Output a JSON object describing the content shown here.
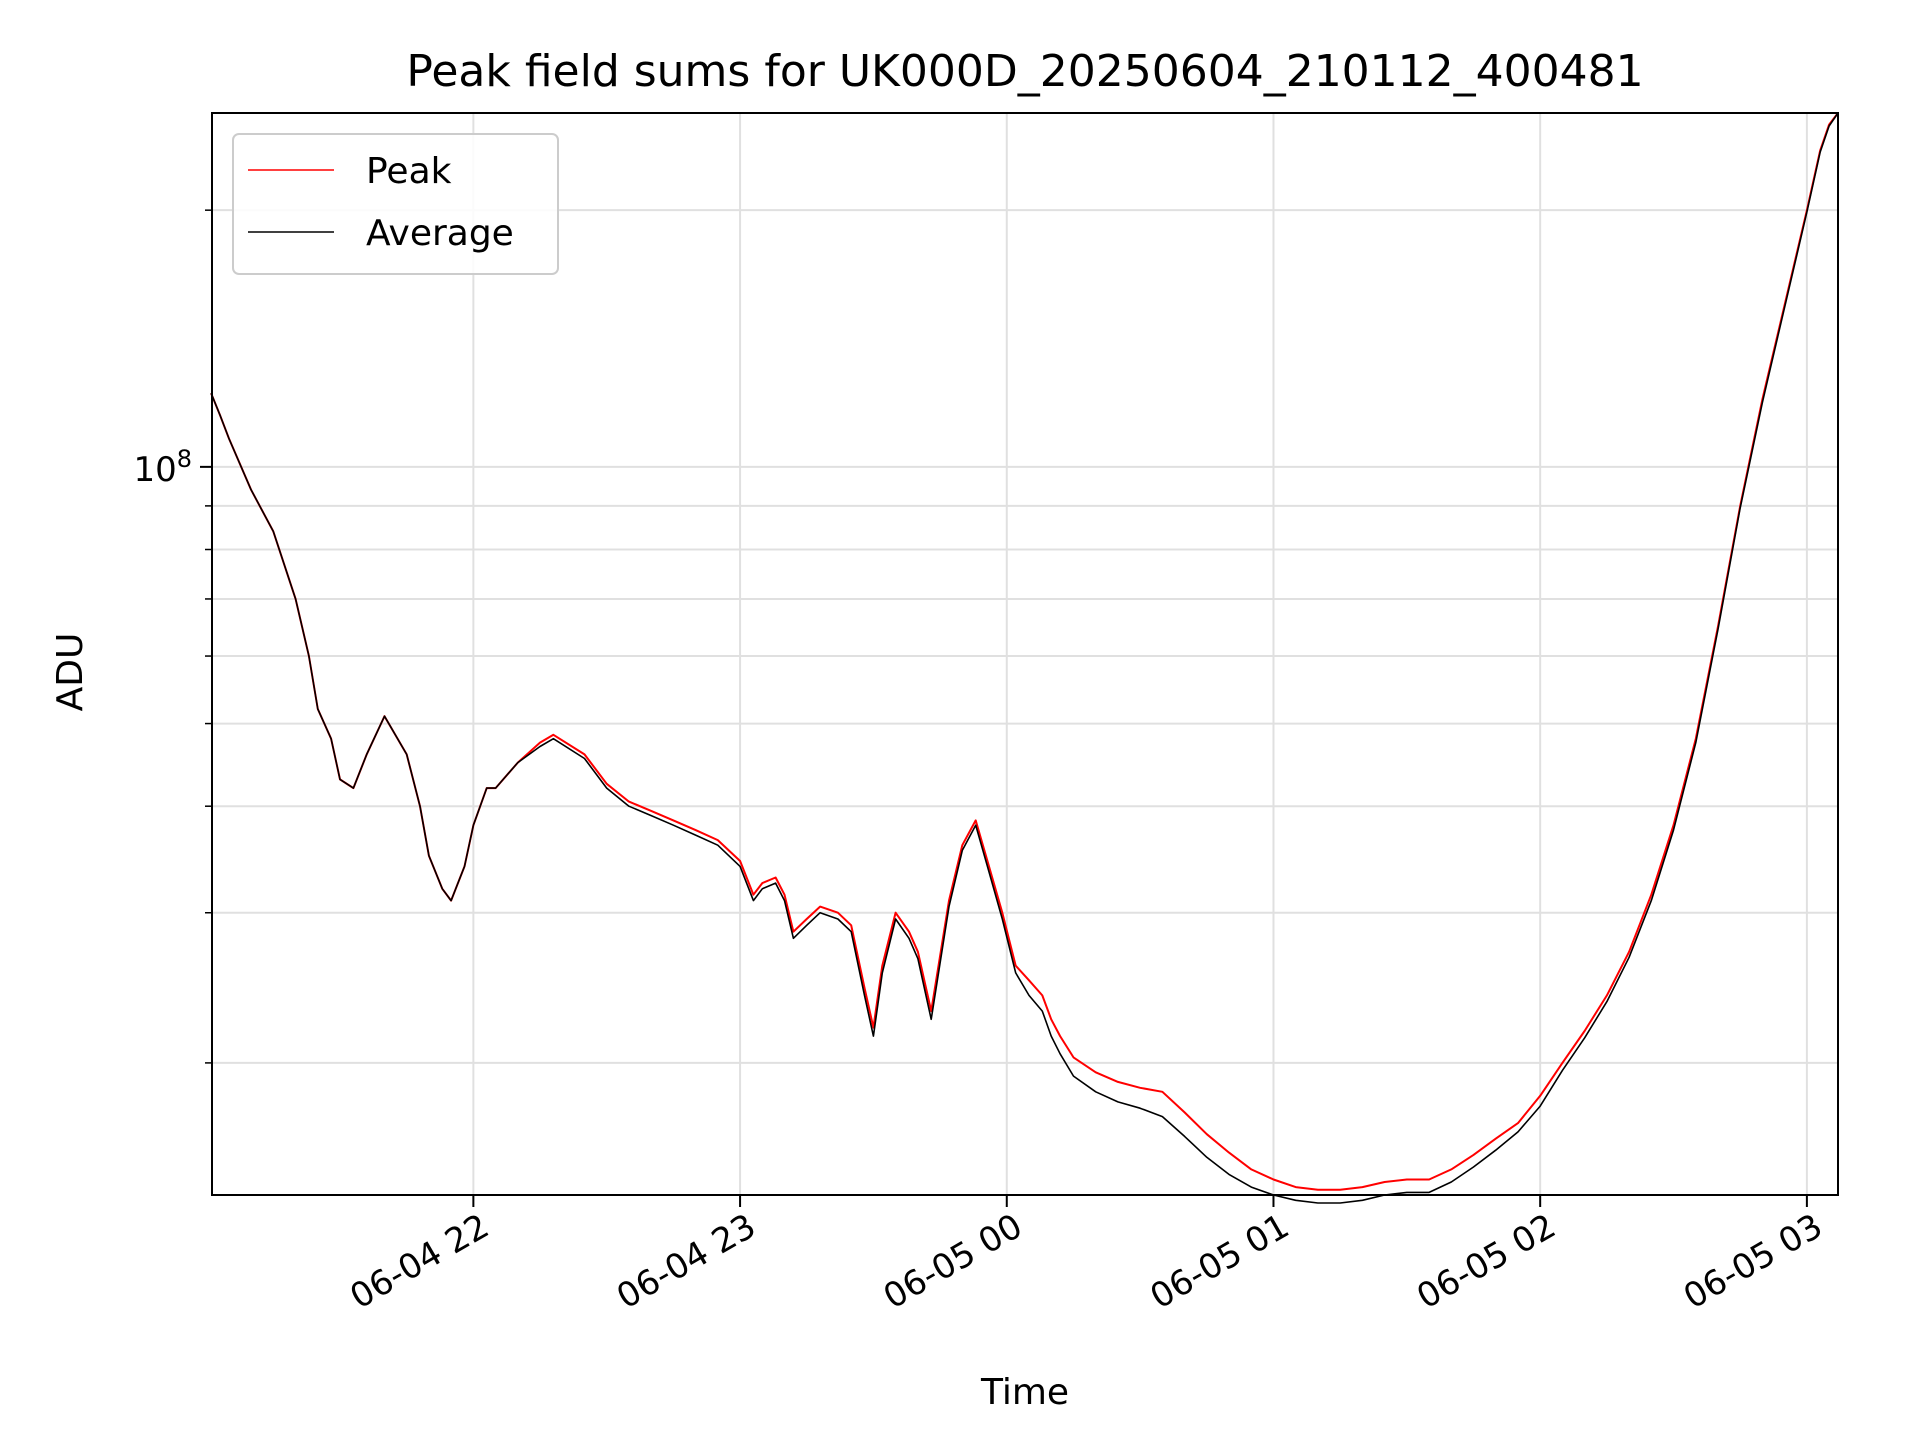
{
  "chart_data": {
    "type": "line",
    "title": "Peak field sums for UK000D_20250604_210112_400481",
    "xlabel": "Time",
    "ylabel": "ADU",
    "y_scale": "log",
    "ylim": [
      14000000,
      260000000
    ],
    "xlim": [
      "2025-06-04 21:01:12",
      "2025-06-05 03:07:00"
    ],
    "x_ticks": [
      {
        "value": "2025-06-04 22:00",
        "label": "06-04 22"
      },
      {
        "value": "2025-06-04 23:00",
        "label": "06-04 23"
      },
      {
        "value": "2025-06-05 00:00",
        "label": "06-05 00"
      },
      {
        "value": "2025-06-05 01:00",
        "label": "06-05 01"
      },
      {
        "value": "2025-06-05 02:00",
        "label": "06-05 02"
      },
      {
        "value": "2025-06-05 03:00",
        "label": "06-05 03"
      }
    ],
    "y_major_ticks": [
      {
        "value": 100000000,
        "label": "10^8"
      }
    ],
    "y_minor_ticks": [
      20000000,
      30000000,
      40000000,
      50000000,
      60000000,
      70000000,
      80000000,
      90000000,
      200000000
    ],
    "grid": true,
    "legend_position": "top-left",
    "series": [
      {
        "name": "Peak",
        "color": "#ff0000",
        "x": [
          "2025-06-04 21:01",
          "2025-06-04 21:03",
          "2025-06-04 21:05",
          "2025-06-04 21:10",
          "2025-06-04 21:15",
          "2025-06-04 21:20",
          "2025-06-04 21:23",
          "2025-06-04 21:25",
          "2025-06-04 21:28",
          "2025-06-04 21:30",
          "2025-06-04 21:33",
          "2025-06-04 21:36",
          "2025-06-04 21:40",
          "2025-06-04 21:45",
          "2025-06-04 21:48",
          "2025-06-04 21:50",
          "2025-06-04 21:53",
          "2025-06-04 21:55",
          "2025-06-04 21:58",
          "2025-06-04 22:00",
          "2025-06-04 22:03",
          "2025-06-04 22:05",
          "2025-06-04 22:10",
          "2025-06-04 22:15",
          "2025-06-04 22:18",
          "2025-06-04 22:25",
          "2025-06-04 22:30",
          "2025-06-04 22:35",
          "2025-06-04 22:40",
          "2025-06-04 22:45",
          "2025-06-04 22:50",
          "2025-06-04 22:55",
          "2025-06-04 23:00",
          "2025-06-04 23:03",
          "2025-06-04 23:05",
          "2025-06-04 23:08",
          "2025-06-04 23:10",
          "2025-06-04 23:12",
          "2025-06-04 23:15",
          "2025-06-04 23:18",
          "2025-06-04 23:22",
          "2025-06-04 23:25",
          "2025-06-04 23:28",
          "2025-06-04 23:30",
          "2025-06-04 23:32",
          "2025-06-04 23:35",
          "2025-06-04 23:38",
          "2025-06-04 23:40",
          "2025-06-04 23:43",
          "2025-06-04 23:47",
          "2025-06-04 23:50",
          "2025-06-04 23:53",
          "2025-06-04 23:56",
          "2025-06-04 23:59",
          "2025-06-05 00:02",
          "2025-06-05 00:05",
          "2025-06-05 00:08",
          "2025-06-05 00:10",
          "2025-06-05 00:12",
          "2025-06-05 00:15",
          "2025-06-05 00:20",
          "2025-06-05 00:25",
          "2025-06-05 00:30",
          "2025-06-05 00:35",
          "2025-06-05 00:40",
          "2025-06-05 00:45",
          "2025-06-05 00:50",
          "2025-06-05 00:55",
          "2025-06-05 01:00",
          "2025-06-05 01:05",
          "2025-06-05 01:10",
          "2025-06-05 01:15",
          "2025-06-05 01:20",
          "2025-06-05 01:25",
          "2025-06-05 01:30",
          "2025-06-05 01:35",
          "2025-06-05 01:40",
          "2025-06-05 01:45",
          "2025-06-05 01:50",
          "2025-06-05 01:55",
          "2025-06-05 02:00",
          "2025-06-05 02:05",
          "2025-06-05 02:10",
          "2025-06-05 02:15",
          "2025-06-05 02:20",
          "2025-06-05 02:25",
          "2025-06-05 02:30",
          "2025-06-05 02:35",
          "2025-06-05 02:40",
          "2025-06-05 02:45",
          "2025-06-05 02:50",
          "2025-06-05 02:55",
          "2025-06-05 03:00",
          "2025-06-05 03:03",
          "2025-06-05 03:05",
          "2025-06-05 03:07"
        ],
        "values": [
          122000000,
          115000000,
          108000000,
          94000000,
          84000000,
          70000000,
          60000000,
          52000000,
          48000000,
          43000000,
          42000000,
          46000000,
          51000000,
          46000000,
          40000000,
          35000000,
          32000000,
          31000000,
          34000000,
          38000000,
          42000000,
          42000000,
          45000000,
          47500000,
          48500000,
          46000000,
          42500000,
          40500000,
          39500000,
          38500000,
          37500000,
          36500000,
          34500000,
          31500000,
          32500000,
          33000000,
          31500000,
          28500000,
          29500000,
          30500000,
          30000000,
          29000000,
          24500000,
          22000000,
          26000000,
          30000000,
          28500000,
          27000000,
          23000000,
          31000000,
          36000000,
          38500000,
          34000000,
          30000000,
          26000000,
          25000000,
          24000000,
          22500000,
          21500000,
          20300000,
          19500000,
          19000000,
          18700000,
          18500000,
          17500000,
          16500000,
          15700000,
          15000000,
          14600000,
          14300000,
          14200000,
          14200000,
          14300000,
          14500000,
          14600000,
          14600000,
          15000000,
          15600000,
          16300000,
          17000000,
          18300000,
          20000000,
          21800000,
          24000000,
          27000000,
          31500000,
          38000000,
          48000000,
          65000000,
          90000000,
          120000000,
          155000000,
          200000000,
          235000000,
          252000000,
          260000000
        ]
      },
      {
        "name": "Average",
        "color": "#000000",
        "x": [
          "2025-06-04 21:01",
          "2025-06-04 21:03",
          "2025-06-04 21:05",
          "2025-06-04 21:10",
          "2025-06-04 21:15",
          "2025-06-04 21:20",
          "2025-06-04 21:23",
          "2025-06-04 21:25",
          "2025-06-04 21:28",
          "2025-06-04 21:30",
          "2025-06-04 21:33",
          "2025-06-04 21:36",
          "2025-06-04 21:40",
          "2025-06-04 21:45",
          "2025-06-04 21:48",
          "2025-06-04 21:50",
          "2025-06-04 21:53",
          "2025-06-04 21:55",
          "2025-06-04 21:58",
          "2025-06-04 22:00",
          "2025-06-04 22:03",
          "2025-06-04 22:05",
          "2025-06-04 22:10",
          "2025-06-04 22:15",
          "2025-06-04 22:18",
          "2025-06-04 22:25",
          "2025-06-04 22:30",
          "2025-06-04 22:35",
          "2025-06-04 22:40",
          "2025-06-04 22:45",
          "2025-06-04 22:50",
          "2025-06-04 22:55",
          "2025-06-04 23:00",
          "2025-06-04 23:03",
          "2025-06-04 23:05",
          "2025-06-04 23:08",
          "2025-06-04 23:10",
          "2025-06-04 23:12",
          "2025-06-04 23:15",
          "2025-06-04 23:18",
          "2025-06-04 23:22",
          "2025-06-04 23:25",
          "2025-06-04 23:28",
          "2025-06-04 23:30",
          "2025-06-04 23:32",
          "2025-06-04 23:35",
          "2025-06-04 23:38",
          "2025-06-04 23:40",
          "2025-06-04 23:43",
          "2025-06-04 23:47",
          "2025-06-04 23:50",
          "2025-06-04 23:53",
          "2025-06-04 23:56",
          "2025-06-04 23:59",
          "2025-06-05 00:02",
          "2025-06-05 00:05",
          "2025-06-05 00:08",
          "2025-06-05 00:10",
          "2025-06-05 00:12",
          "2025-06-05 00:15",
          "2025-06-05 00:20",
          "2025-06-05 00:25",
          "2025-06-05 00:30",
          "2025-06-05 00:35",
          "2025-06-05 00:40",
          "2025-06-05 00:45",
          "2025-06-05 00:50",
          "2025-06-05 00:55",
          "2025-06-05 01:00",
          "2025-06-05 01:05",
          "2025-06-05 01:10",
          "2025-06-05 01:15",
          "2025-06-05 01:20",
          "2025-06-05 01:25",
          "2025-06-05 01:30",
          "2025-06-05 01:35",
          "2025-06-05 01:40",
          "2025-06-05 01:45",
          "2025-06-05 01:50",
          "2025-06-05 01:55",
          "2025-06-05 02:00",
          "2025-06-05 02:05",
          "2025-06-05 02:10",
          "2025-06-05 02:15",
          "2025-06-05 02:20",
          "2025-06-05 02:25",
          "2025-06-05 02:30",
          "2025-06-05 02:35",
          "2025-06-05 02:40",
          "2025-06-05 02:45",
          "2025-06-05 02:50",
          "2025-06-05 02:55",
          "2025-06-05 03:00",
          "2025-06-05 03:03",
          "2025-06-05 03:05",
          "2025-06-05 03:07"
        ],
        "values": [
          122000000,
          115000000,
          108000000,
          94000000,
          84000000,
          70000000,
          60000000,
          52000000,
          48000000,
          43000000,
          42000000,
          46000000,
          51000000,
          46000000,
          40000000,
          35000000,
          32000000,
          31000000,
          34000000,
          38000000,
          42000000,
          42000000,
          45000000,
          47000000,
          48000000,
          45500000,
          42000000,
          40000000,
          39000000,
          38000000,
          37000000,
          36000000,
          34000000,
          31000000,
          32000000,
          32500000,
          31000000,
          28000000,
          29000000,
          30000000,
          29500000,
          28500000,
          24000000,
          21500000,
          25500000,
          29500000,
          28000000,
          26500000,
          22500000,
          30500000,
          35500000,
          38000000,
          33500000,
          29500000,
          25500000,
          24000000,
          23000000,
          21500000,
          20500000,
          19300000,
          18500000,
          18000000,
          17700000,
          17300000,
          16400000,
          15500000,
          14800000,
          14300000,
          14000000,
          13800000,
          13700000,
          13700000,
          13800000,
          14000000,
          14100000,
          14100000,
          14500000,
          15100000,
          15800000,
          16600000,
          17800000,
          19600000,
          21400000,
          23600000,
          26600000,
          31000000,
          37500000,
          47500000,
          64500000,
          89500000,
          119000000,
          154000000,
          199000000,
          234000000,
          251000000,
          260000000
        ]
      }
    ]
  }
}
